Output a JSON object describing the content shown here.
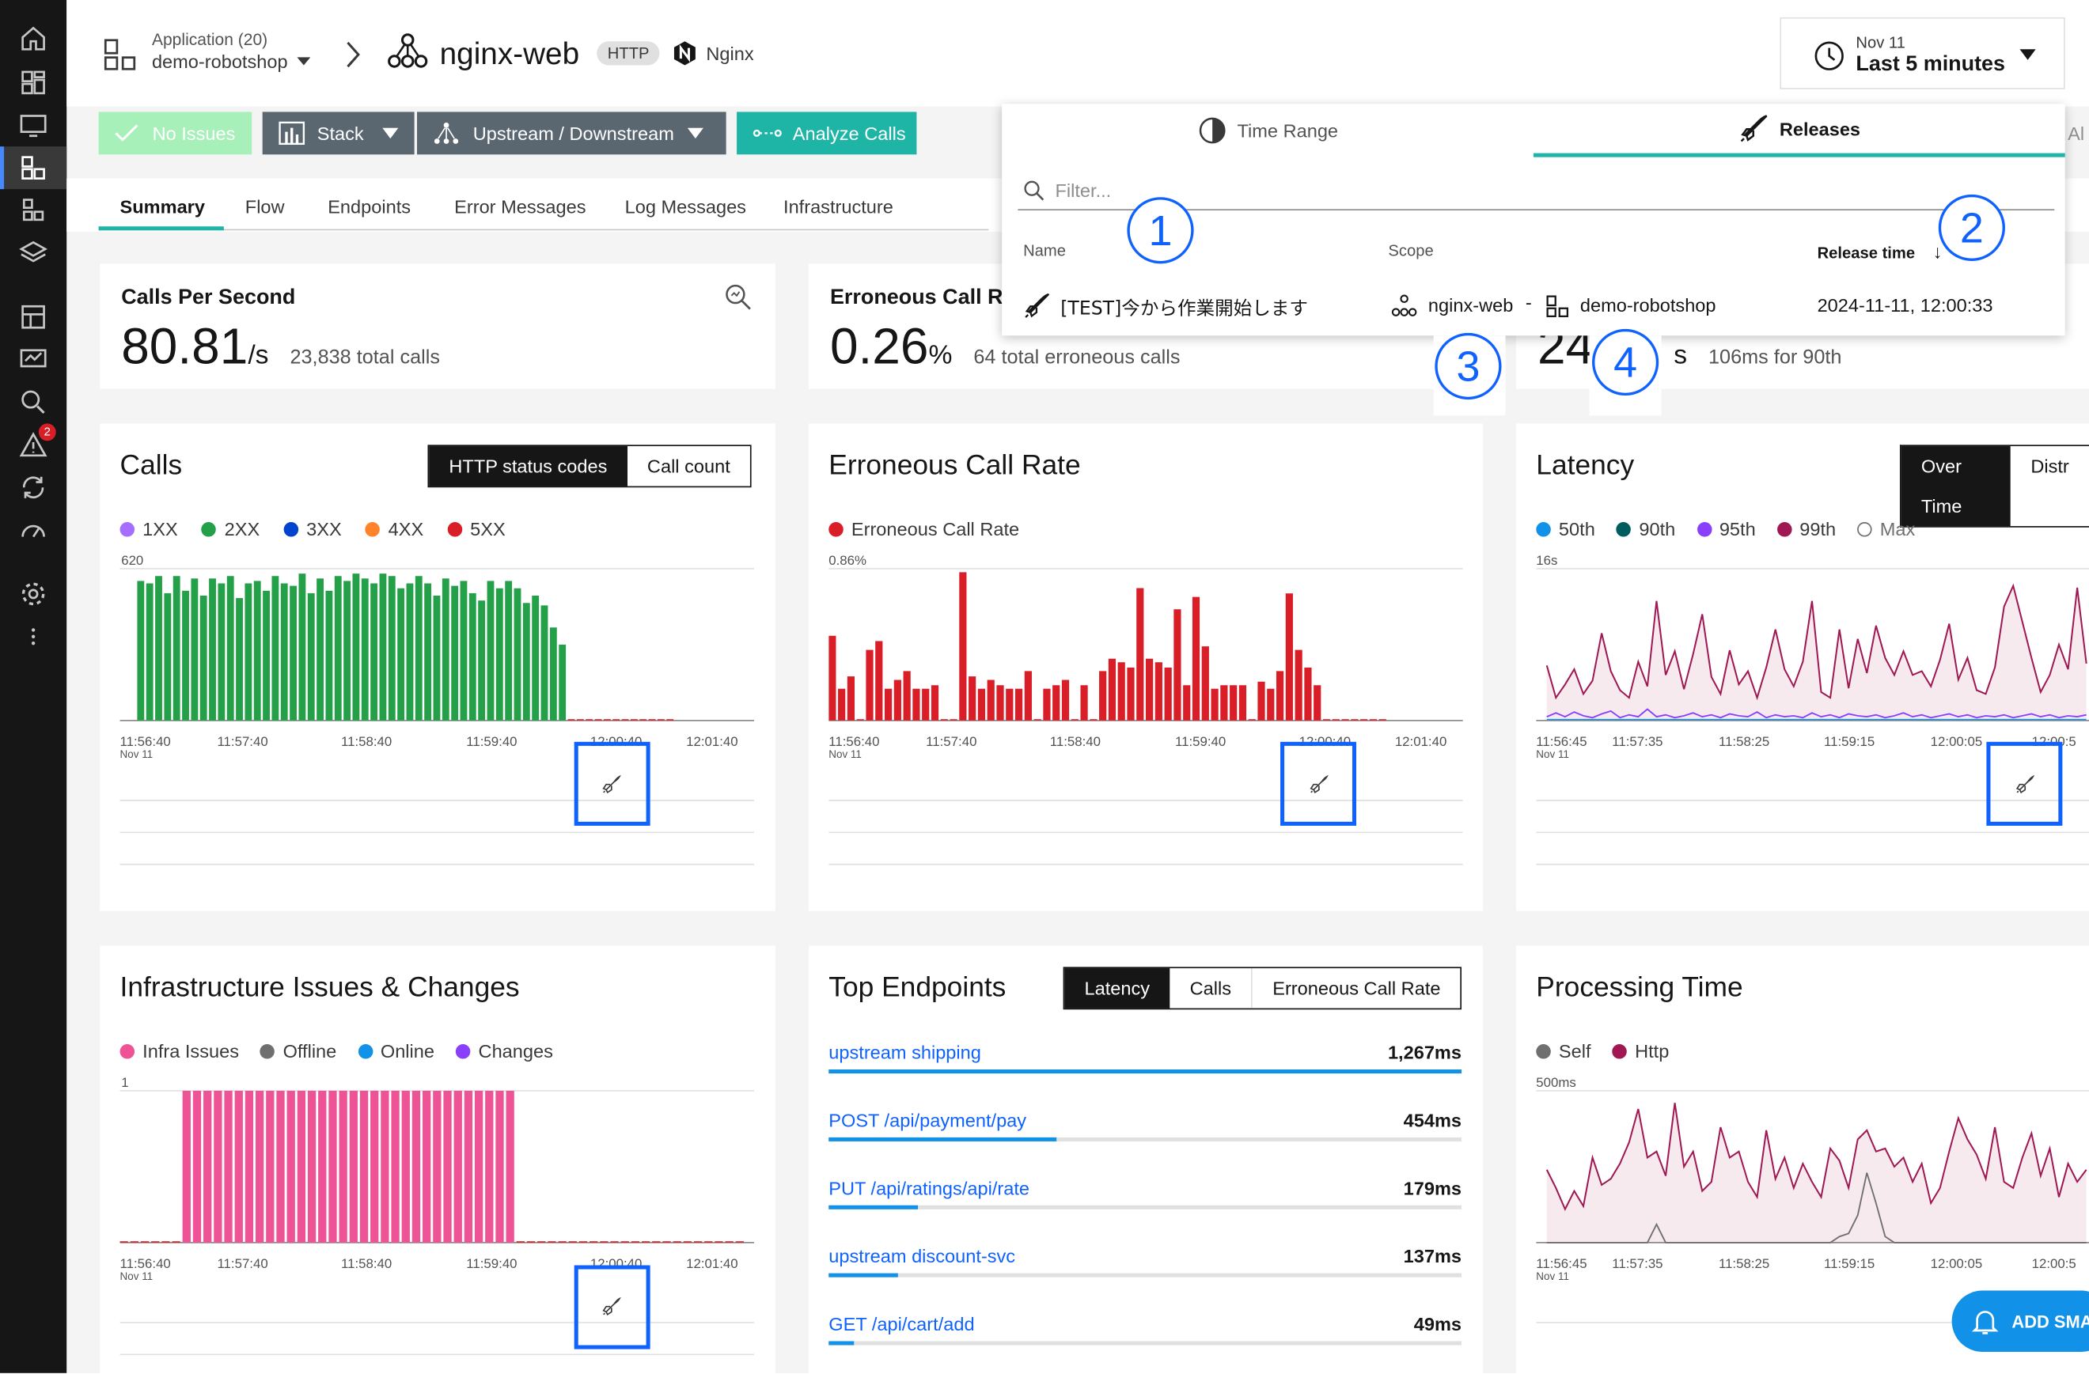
{
  "header": {
    "app_label": "Application (20)",
    "app_name": "demo-robotshop",
    "service_name": "nginx-web",
    "protocol_tag": "HTTP",
    "technology": "Nginx",
    "time_date": "Nov 11",
    "time_range": "Last 5 minutes"
  },
  "sidebar": {
    "alerts_badge": "2"
  },
  "toolbar": {
    "no_issues": "No Issues",
    "stack": "Stack",
    "upstream_downstream": "Upstream / Downstream",
    "analyze_calls": "Analyze Calls"
  },
  "tabs": [
    "Summary",
    "Flow",
    "Endpoints",
    "Error Messages",
    "Log Messages",
    "Infrastructure"
  ],
  "popover": {
    "tab_time_range": "Time Range",
    "tab_releases": "Releases",
    "right_edge_text": "Al",
    "filter_placeholder": "Filter...",
    "col_name": "Name",
    "col_scope": "Scope",
    "col_release_time": "Release time",
    "sort_arrow": "↓",
    "release": {
      "name": "[TEST]今から作業開始します",
      "scope_service": "nginx-web",
      "scope_separator": "-",
      "scope_app": "demo-robotshop",
      "time": "2024-11-11, 12:00:33"
    },
    "callouts": [
      "1",
      "2",
      "3",
      "4"
    ]
  },
  "kpis": {
    "cps_title": "Calls Per Second",
    "cps_value": "80.81",
    "cps_unit": "/s",
    "cps_sub": "23,838 total calls",
    "err_title": "Erroneous Call Ra",
    "err_value": "0.26",
    "err_unit": "%",
    "err_sub": "64 total erroneous calls",
    "lat_value": "24",
    "lat_unit": "s",
    "lat_sub": "106ms for 90th"
  },
  "cards": {
    "calls": {
      "title": "Calls",
      "toggle_on": "HTTP status codes",
      "toggle_off": "Call count",
      "legend": [
        "1XX",
        "2XX",
        "3XX",
        "4XX",
        "5XX"
      ],
      "ymax": "620",
      "ticks": [
        "11:56:40",
        "11:57:40",
        "11:58:40",
        "11:59:40",
        "12:00:40",
        "12:01:40"
      ],
      "date": "Nov 11"
    },
    "err": {
      "title": "Erroneous Call Rate",
      "legend": [
        "Erroneous Call Rate"
      ],
      "ymax": "0.86%",
      "ticks": [
        "11:56:40",
        "11:57:40",
        "11:58:40",
        "11:59:40",
        "12:00:40",
        "12:01:40"
      ],
      "date": "Nov 11"
    },
    "latency": {
      "title": "Latency",
      "toggle_on": "Over Time",
      "toggle_off": "Distr",
      "legend": [
        "50th",
        "90th",
        "95th",
        "99th",
        "Max"
      ],
      "ymax": "16s",
      "ticks": [
        "11:56:45",
        "11:57:35",
        "11:58:25",
        "11:59:15",
        "12:00:05",
        "12:00:5"
      ],
      "date": "Nov 11"
    },
    "infra": {
      "title": "Infrastructure Issues & Changes",
      "legend": [
        "Infra Issues",
        "Offline",
        "Online",
        "Changes"
      ],
      "ymax": "1",
      "ticks": [
        "11:56:40",
        "11:57:40",
        "11:58:40",
        "11:59:40",
        "12:00:40",
        "12:01:40"
      ],
      "date": "Nov 11"
    },
    "endpoints": {
      "title": "Top Endpoints",
      "seg": [
        "Latency",
        "Calls",
        "Erroneous Call Rate"
      ],
      "rows": [
        {
          "name": "upstream shipping",
          "value": "1,267ms",
          "fraction": 1.0
        },
        {
          "name": "POST /api/payment/pay",
          "value": "454ms",
          "fraction": 0.36
        },
        {
          "name": "PUT /api/ratings/api/rate",
          "value": "179ms",
          "fraction": 0.14
        },
        {
          "name": "upstream discount-svc",
          "value": "137ms",
          "fraction": 0.11
        },
        {
          "name": "GET /api/cart/add",
          "value": "49ms",
          "fraction": 0.04
        }
      ]
    },
    "processing": {
      "title": "Processing Time",
      "legend": [
        "Self",
        "Http"
      ],
      "ymax": "500ms",
      "ticks": [
        "11:56:45",
        "11:57:35",
        "11:58:25",
        "11:59:15",
        "12:00:05",
        "12:00:5"
      ],
      "date": "Nov 11"
    }
  },
  "add_smart_alert": "ADD SMA",
  "colors": {
    "c1xx": "#a56eff",
    "c2xx": "#24a148",
    "c3xx": "#0043ce",
    "c4xx": "#ff832b",
    "c5xx": "#da1e28",
    "p50": "#1192e8",
    "p90": "#005d5d",
    "p95": "#8a3ffc",
    "p99": "#9f1853",
    "max": "#6f6f6f",
    "infra": "#ee5396",
    "offline": "#6f6f6f",
    "online": "#1192e8",
    "changes": "#8a3ffc",
    "self": "#6f6f6f",
    "http": "#9f1853",
    "accent": "#0f62fe",
    "teal": "#1fb5a6"
  },
  "chart_data": [
    {
      "type": "bar",
      "title": "Calls",
      "series_name": "2XX",
      "ylim": [
        0,
        620
      ],
      "values": [
        570,
        560,
        590,
        520,
        590,
        530,
        580,
        510,
        580,
        560,
        590,
        500,
        560,
        570,
        530,
        590,
        560,
        550,
        600,
        520,
        580,
        530,
        590,
        570,
        600,
        580,
        560,
        600,
        590,
        540,
        560,
        590,
        560,
        510,
        580,
        550,
        570,
        520,
        490,
        570,
        540,
        570,
        540,
        480,
        510,
        470,
        380,
        310,
        0,
        0,
        0,
        0,
        0,
        0,
        0,
        0,
        0,
        0,
        0,
        0
      ]
    },
    {
      "type": "bar",
      "title": "Erroneous Call Rate",
      "series_name": "Erroneous Call Rate",
      "ylim": [
        0,
        0.86
      ],
      "values": [
        0.48,
        0.18,
        0.25,
        0,
        0.4,
        0.45,
        0.18,
        0.23,
        0.28,
        0.18,
        0.18,
        0.2,
        0,
        0,
        0.84,
        0.25,
        0.18,
        0.23,
        0.2,
        0.18,
        0.18,
        0.28,
        0,
        0.18,
        0.2,
        0.23,
        0,
        0.2,
        0,
        0.28,
        0.35,
        0.33,
        0.3,
        0.75,
        0.35,
        0.33,
        0.3,
        0.63,
        0.2,
        0.7,
        0.42,
        0.18,
        0.2,
        0.2,
        0.2,
        0,
        0.22,
        0.18,
        0.28,
        0.72,
        0.4,
        0.3,
        0.2,
        0,
        0,
        0,
        0,
        0,
        0,
        0
      ]
    },
    {
      "type": "line",
      "title": "Latency",
      "ylim": [
        0,
        16
      ],
      "series": [
        {
          "name": "99th",
          "values": [
            5.8,
            2.4,
            3.8,
            5.4,
            2.8,
            4.2,
            9.2,
            5.2,
            3.2,
            2.4,
            6.2,
            3.6,
            12.6,
            4.8,
            7.3,
            3.3,
            7.0,
            11.2,
            4.6,
            2.8,
            7.4,
            3.8,
            5.2,
            2.4,
            5.6,
            9.6,
            5.4,
            3.6,
            6.2,
            12.6,
            3.0,
            2.4,
            9.6,
            3.4,
            8.6,
            5.0,
            10.0,
            6.6,
            4.8,
            7.3,
            4.8,
            5.2,
            3.6,
            6.4,
            10.2,
            4.3,
            6.6,
            3.2,
            2.8,
            5.6,
            12.0,
            14.2,
            10.4,
            6.6,
            3.0,
            4.8,
            8.0,
            5.4,
            14.0,
            6.0
          ]
        },
        {
          "name": "95th",
          "values": [
            0.4,
            0.8,
            0.4,
            0.9,
            0.5,
            0.3,
            0.7,
            1.0,
            0.3,
            0.6,
            0.4,
            1.2,
            0.4,
            0.6,
            0.3,
            0.5,
            0.8,
            0.4,
            0.6,
            0.3,
            0.7,
            0.5,
            0.4,
            0.9,
            0.3,
            0.6,
            0.4,
            0.5,
            0.3,
            0.8,
            0.4,
            0.6,
            0.3,
            0.7,
            0.5,
            0.4,
            0.6,
            0.3,
            0.5,
            0.8,
            0.4,
            0.6,
            0.3,
            0.5,
            0.7,
            0.4,
            0.6,
            0.3,
            0.5,
            0.4,
            0.6,
            0.3,
            0.5,
            0.7,
            0.4,
            0.6,
            0.3,
            0.5,
            0.4,
            0.6
          ]
        },
        {
          "name": "50th",
          "values": [
            0.1,
            0.1,
            0.1,
            0.1,
            0.1,
            0.1,
            0.1,
            0.1,
            0.1,
            0.1,
            0.1,
            0.1,
            0.1,
            0.1,
            0.1,
            0.1,
            0.1,
            0.1,
            0.1,
            0.1,
            0.1,
            0.1,
            0.1,
            0.1,
            0.1,
            0.1,
            0.1,
            0.1,
            0.1,
            0.1,
            0.1,
            0.1,
            0.1,
            0.1,
            0.1,
            0.1,
            0.1,
            0.1,
            0.1,
            0.1,
            0.1,
            0.1,
            0.1,
            0.1,
            0.1,
            0.1,
            0.1,
            0.1,
            0.1,
            0.1,
            0.1,
            0.1,
            0.1,
            0.1,
            0.1,
            0.1,
            0.1,
            0.1,
            0.1,
            0.1
          ]
        }
      ]
    },
    {
      "type": "bar",
      "title": "Infrastructure Issues & Changes",
      "series_name": "Infra Issues",
      "ylim": [
        0,
        1
      ],
      "values": [
        0,
        0,
        0,
        0,
        0,
        0,
        1,
        1,
        1,
        1,
        1,
        1,
        1,
        1,
        1,
        1,
        1,
        1,
        1,
        1,
        1,
        1,
        1,
        1,
        1,
        1,
        1,
        1,
        1,
        1,
        1,
        1,
        1,
        1,
        1,
        1,
        1,
        1,
        0,
        0,
        0,
        0,
        0,
        0,
        0,
        0,
        0,
        0,
        0,
        0,
        0,
        0,
        0,
        0,
        0,
        0,
        0,
        0,
        0,
        0
      ]
    },
    {
      "type": "line",
      "title": "Processing Time",
      "ylim": [
        0,
        500
      ],
      "series": [
        {
          "name": "Http",
          "values": [
            240,
            180,
            110,
            170,
            120,
            280,
            190,
            210,
            260,
            330,
            440,
            280,
            300,
            220,
            460,
            250,
            300,
            170,
            200,
            380,
            280,
            300,
            200,
            150,
            370,
            210,
            280,
            180,
            260,
            200,
            150,
            310,
            270,
            180,
            340,
            370,
            300,
            310,
            250,
            280,
            200,
            260,
            130,
            180,
            300,
            410,
            340,
            290,
            210,
            380,
            200,
            180,
            280,
            360,
            220,
            310,
            150,
            260,
            200,
            240
          ]
        },
        {
          "name": "Self",
          "values": [
            0,
            0,
            0,
            0,
            0,
            0,
            0,
            0,
            0,
            0,
            0,
            0,
            60,
            0,
            0,
            0,
            0,
            0,
            0,
            0,
            0,
            0,
            0,
            0,
            0,
            0,
            0,
            0,
            0,
            0,
            0,
            0,
            20,
            30,
            90,
            230,
            130,
            20,
            0,
            0,
            0,
            0,
            0,
            0,
            0,
            0,
            0,
            0,
            0,
            0,
            0,
            0,
            0,
            0,
            0,
            0,
            0,
            0,
            0,
            0
          ]
        }
      ]
    },
    {
      "type": "bar",
      "title": "Top Endpoints",
      "categories": [
        "upstream shipping",
        "POST /api/payment/pay",
        "PUT /api/ratings/api/rate",
        "upstream discount-svc",
        "GET /api/cart/add"
      ],
      "values": [
        1267,
        454,
        179,
        137,
        49
      ],
      "unit": "ms"
    }
  ]
}
